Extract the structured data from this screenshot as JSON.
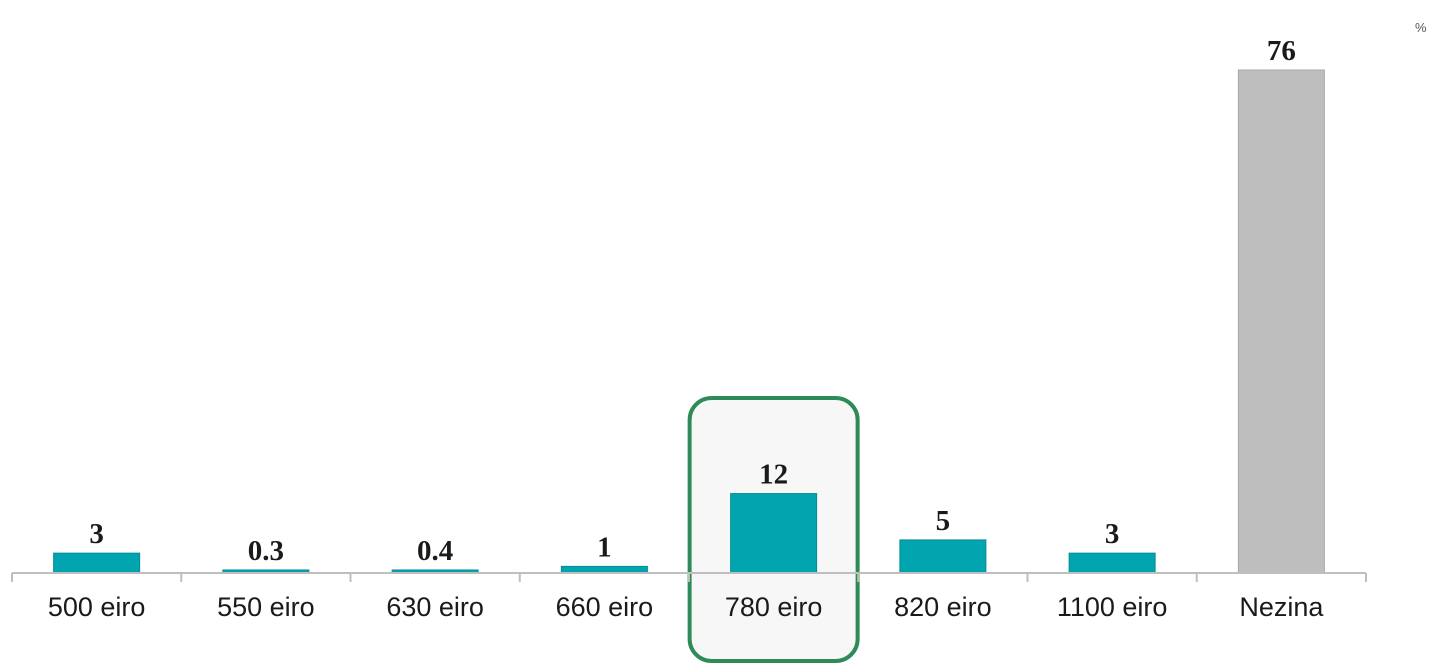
{
  "chart_data": {
    "type": "bar",
    "unit": "%",
    "categories": [
      "500 eiro",
      "550 eiro",
      "630 eiro",
      "660 eiro",
      "780 eiro",
      "820 eiro",
      "1100 eiro",
      "Nezina"
    ],
    "values": [
      3,
      0.3,
      0.4,
      1,
      12,
      5,
      3,
      76
    ],
    "value_labels": [
      "3",
      "0.3",
      "0.4",
      "1",
      "12",
      "5",
      "3",
      "76"
    ],
    "bar_colors": [
      "#00A5AF",
      "#00A5AF",
      "#00A5AF",
      "#00A5AF",
      "#00A5AF",
      "#00A5AF",
      "#00A5AF",
      "#BEBEBE"
    ],
    "highlighted_category": "780 eiro",
    "highlight_color": "#2E8B57",
    "ylim": [
      0,
      76
    ],
    "grid": false,
    "title": "",
    "xlabel": "",
    "ylabel": ""
  }
}
